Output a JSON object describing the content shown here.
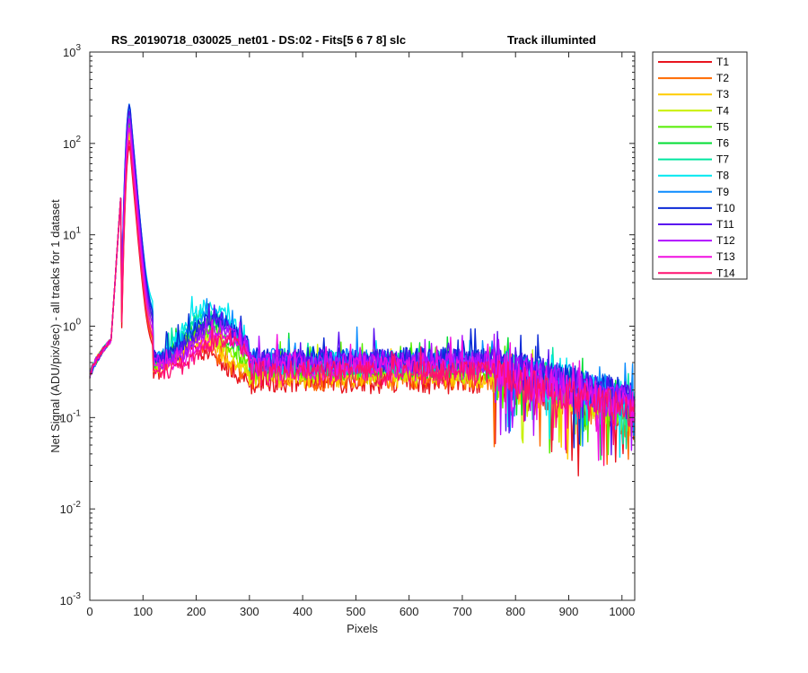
{
  "chart_data": {
    "type": "line",
    "title": "RS_20190718_030025_net01 - DS:02 - Fits[5  6  7  8]   slc",
    "title_right": "Track illuminted",
    "xlabel": "Pixels",
    "ylabel": "Net Signal (ADU/pix/sec) - all tracks for 1 dataset",
    "xlim": [
      0,
      1024
    ],
    "ylim": [
      0.001,
      1000
    ],
    "yscale": "log",
    "x_ticks": [
      "0",
      "100",
      "200",
      "300",
      "400",
      "500",
      "600",
      "700",
      "800",
      "900",
      "1000"
    ],
    "y_tick_bases": [
      "10",
      "10",
      "10",
      "10",
      "10",
      "10",
      "10"
    ],
    "y_tick_exponents": [
      "-3",
      "-2",
      "-1",
      "0",
      "1",
      "2",
      "3"
    ],
    "grid": false,
    "legend_position": "outside-top-right",
    "series": [
      {
        "name": "T1",
        "color": "#e8141e",
        "peak": 95,
        "bump": 0.55,
        "base": 0.26,
        "tail": 0.09
      },
      {
        "name": "T2",
        "color": "#ff6a00",
        "peak": 110,
        "bump": 0.62,
        "base": 0.28,
        "tail": 0.1
      },
      {
        "name": "T3",
        "color": "#ffcc00",
        "peak": 125,
        "bump": 0.7,
        "base": 0.3,
        "tail": 0.11
      },
      {
        "name": "T4",
        "color": "#c8f000",
        "peak": 140,
        "bump": 0.8,
        "base": 0.33,
        "tail": 0.12
      },
      {
        "name": "T5",
        "color": "#55ee00",
        "peak": 160,
        "bump": 0.95,
        "base": 0.36,
        "tail": 0.13
      },
      {
        "name": "T6",
        "color": "#00dd33",
        "peak": 180,
        "bump": 1.1,
        "base": 0.38,
        "tail": 0.14
      },
      {
        "name": "T7",
        "color": "#00e6a0",
        "peak": 210,
        "bump": 1.35,
        "base": 0.4,
        "tail": 0.15
      },
      {
        "name": "T8",
        "color": "#00e8f0",
        "peak": 260,
        "bump": 1.7,
        "base": 0.42,
        "tail": 0.16
      },
      {
        "name": "T9",
        "color": "#0a8cff",
        "peak": 275,
        "bump": 1.3,
        "base": 0.44,
        "tail": 0.17
      },
      {
        "name": "T10",
        "color": "#0b2ad6",
        "peak": 270,
        "bump": 1.2,
        "base": 0.45,
        "tail": 0.17
      },
      {
        "name": "T11",
        "color": "#5a10f0",
        "peak": 230,
        "bump": 1.05,
        "base": 0.43,
        "tail": 0.16
      },
      {
        "name": "T12",
        "color": "#b010ff",
        "peak": 190,
        "bump": 0.9,
        "base": 0.4,
        "tail": 0.15
      },
      {
        "name": "T13",
        "color": "#f010e0",
        "peak": 150,
        "bump": 0.78,
        "base": 0.36,
        "tail": 0.13
      },
      {
        "name": "T14",
        "color": "#ff1070",
        "peak": 110,
        "bump": 0.7,
        "base": 0.32,
        "tail": 0.12
      }
    ]
  }
}
